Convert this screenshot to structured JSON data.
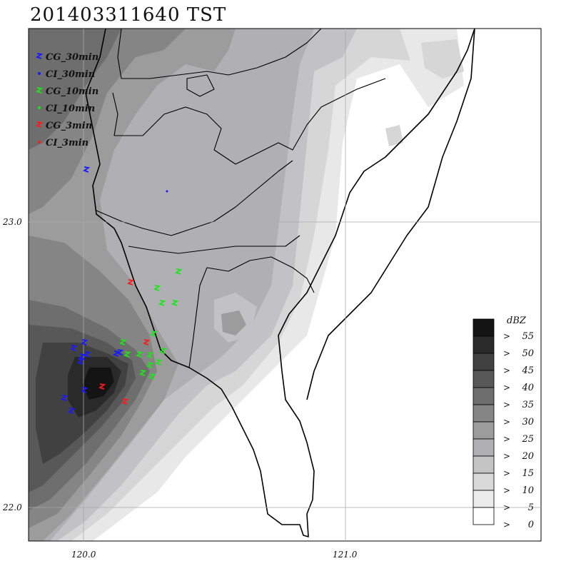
{
  "title": "201403311640 TST",
  "legend": {
    "items": [
      {
        "label": "CG_30min",
        "color": "#1a1aff",
        "symbol": "bolt"
      },
      {
        "label": "CI_30min",
        "color": "#1a1aff",
        "symbol": "dot"
      },
      {
        "label": "CG_10min",
        "color": "#19e619",
        "symbol": "bolt"
      },
      {
        "label": "CI_10min",
        "color": "#19e619",
        "symbol": "dot"
      },
      {
        "label": "CG_3min",
        "color": "#ff1a1a",
        "symbol": "bolt"
      },
      {
        "label": "CI_3min",
        "color": "#ff1a1a",
        "symbol": "dot"
      }
    ]
  },
  "axes": {
    "y_ticks": [
      {
        "label": "23.0",
        "value": 23.0
      },
      {
        "label": "22.0",
        "value": 22.0
      }
    ],
    "x_ticks": [
      {
        "label": "120.0",
        "value": 120.0
      },
      {
        "label": "121.0",
        "value": 121.0
      }
    ]
  },
  "colorbar": {
    "unit": "dBZ",
    "levels": [
      {
        "label": "55",
        "color": "#141414"
      },
      {
        "label": "50",
        "color": "#2a2a2a"
      },
      {
        "label": "45",
        "color": "#414141"
      },
      {
        "label": "40",
        "color": "#585858"
      },
      {
        "label": "35",
        "color": "#6e6e6e"
      },
      {
        "label": "30",
        "color": "#858585"
      },
      {
        "label": "25",
        "color": "#9c9c9c"
      },
      {
        "label": "20",
        "color": "#b0b0b4"
      },
      {
        "label": "15",
        "color": "#c4c4c4"
      },
      {
        "label": "10",
        "color": "#d9d9d9"
      },
      {
        "label": "5",
        "color": "#ececec"
      },
      {
        "label": "0",
        "color": "#ffffff"
      }
    ],
    "prefix": ">"
  }
}
